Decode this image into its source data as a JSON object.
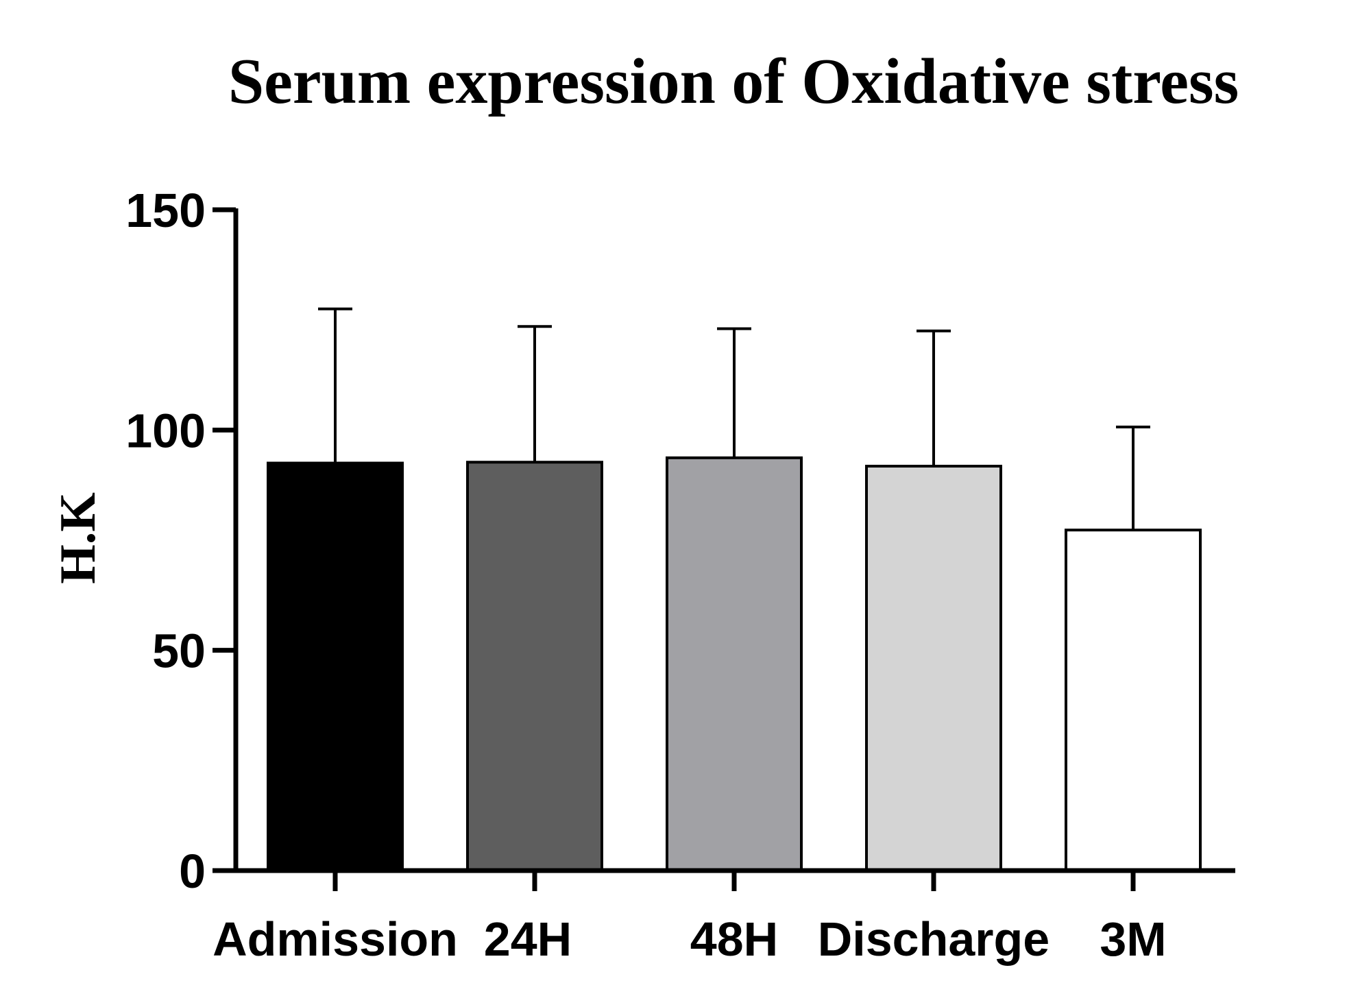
{
  "chart_data": {
    "type": "bar",
    "title": "Serum expression of Oxidative stress",
    "xlabel": "",
    "ylabel": "H.K",
    "ylim": [
      0,
      150
    ],
    "yticks": [
      "0",
      "50",
      "100",
      "150"
    ],
    "categories": [
      "Admission",
      "24H",
      "48H",
      "Discharge",
      "3M"
    ],
    "values": [
      92.5,
      92.7,
      93.7,
      91.8,
      77.3
    ],
    "error_upper": [
      127.5,
      123.5,
      123.0,
      122.5,
      100.7
    ],
    "bar_colors": [
      "#000000",
      "#5e5e5e",
      "#a1a1a5",
      "#d4d4d4",
      "#ffffff"
    ],
    "grid": false,
    "legend": "none"
  }
}
